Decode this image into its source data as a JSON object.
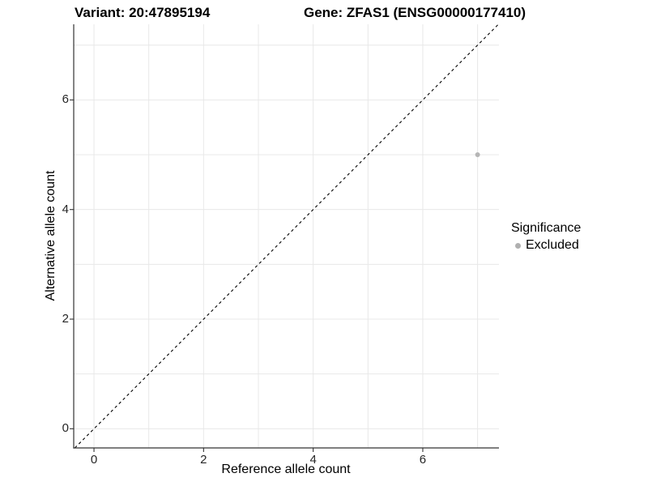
{
  "titles": {
    "left": "Variant: 20:47895194",
    "right": "Gene: ZFAS1 (ENSG00000177410)"
  },
  "legend": {
    "title": "Significance",
    "items": [
      {
        "label": "Excluded",
        "color": "#b0b0b0"
      }
    ]
  },
  "chart_data": {
    "type": "scatter",
    "title": "Variant: 20:47895194 / Gene: ZFAS1 (ENSG00000177410)",
    "xlabel": "Reference allele count",
    "ylabel": "Alternative allele count",
    "xlim": [
      -0.37,
      7.39
    ],
    "ylim": [
      -0.35,
      7.38
    ],
    "xticks": [
      0,
      2,
      4,
      6
    ],
    "yticks": [
      0,
      2,
      4,
      6
    ],
    "gridlines_x": [
      0,
      1,
      2,
      3,
      4,
      5,
      6,
      7
    ],
    "gridlines_y": [
      0,
      1,
      2,
      3,
      4,
      5,
      6,
      7
    ],
    "grid": "on",
    "legend_position": "right",
    "series": [
      {
        "name": "Excluded",
        "points": [
          {
            "x": 7,
            "y": 5
          }
        ],
        "color": "#b5b5b5",
        "point_radius": 3
      }
    ],
    "reference_line": {
      "kind": "identity",
      "style": "dashed",
      "color": "#000000"
    }
  },
  "style": {
    "grid_color": "#e8e8e8",
    "axis_color": "#333333",
    "tick_color": "#333333",
    "background": "#ffffff"
  }
}
